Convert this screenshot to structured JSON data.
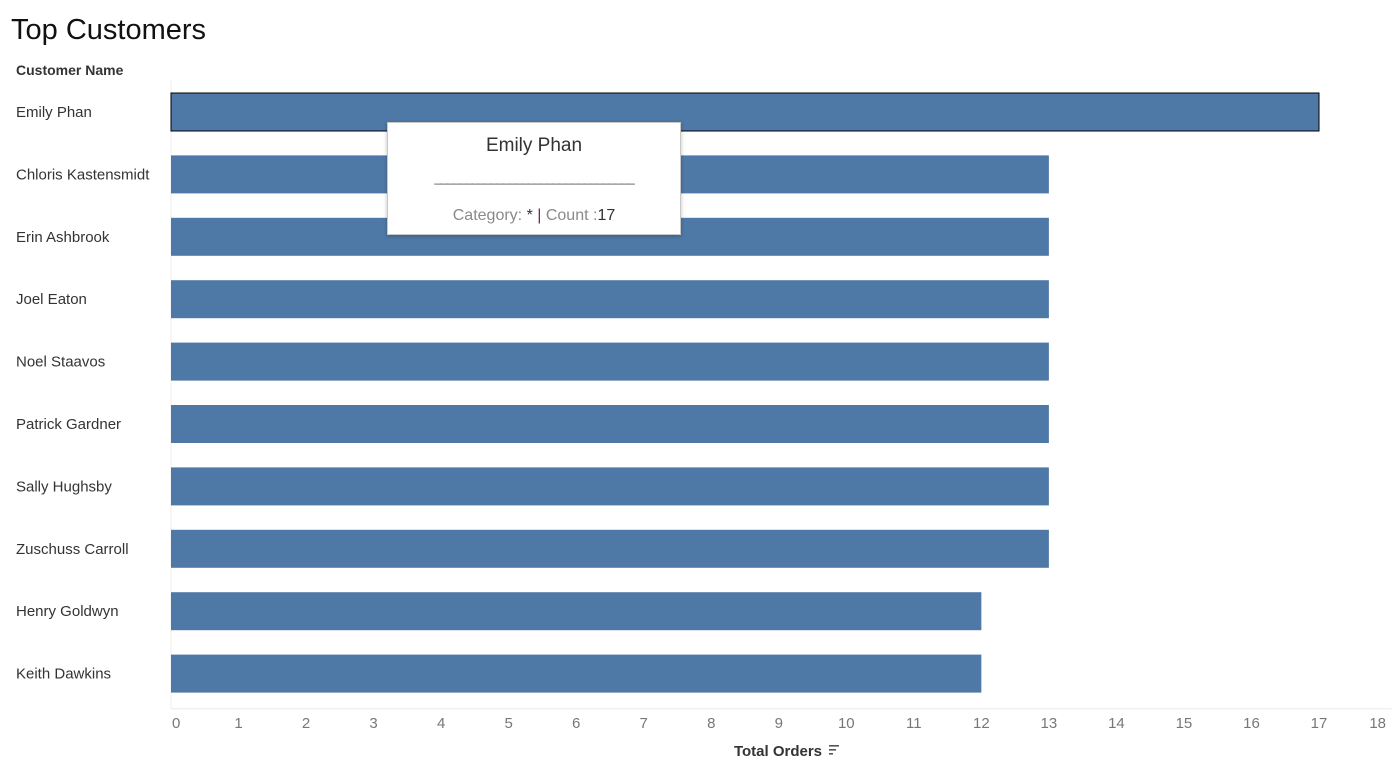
{
  "title": "Top Customers",
  "row_header": "Customer Name",
  "chart_data": {
    "type": "bar",
    "orientation": "horizontal",
    "categories": [
      "Emily Phan",
      "Chloris Kastensmidt",
      "Erin Ashbrook",
      "Joel Eaton",
      "Noel Staavos",
      "Patrick Gardner",
      "Sally Hughsby",
      "Zuschuss Carroll",
      "Henry Goldwyn",
      "Keith Dawkins"
    ],
    "values": [
      17,
      13,
      13,
      13,
      13,
      13,
      13,
      13,
      12,
      12
    ],
    "xlabel": "Total Orders",
    "ylabel": "Customer Name",
    "xlim": [
      0,
      18
    ],
    "xticks": [
      "0",
      "1",
      "2",
      "3",
      "4",
      "5",
      "6",
      "7",
      "8",
      "9",
      "10",
      "11",
      "12",
      "13",
      "14",
      "15",
      "16",
      "17",
      "18"
    ],
    "grid": false,
    "highlighted_category": "Emily Phan",
    "bar_color": "#4e79a7",
    "sort_icon": "sort-descending-icon"
  },
  "tooltip": {
    "title": "Emily Phan",
    "separator": "________________________________",
    "category_label": "Category: ",
    "category_value": "*",
    "pipe": " | ",
    "count_label": "Count :",
    "count_value": "17"
  }
}
